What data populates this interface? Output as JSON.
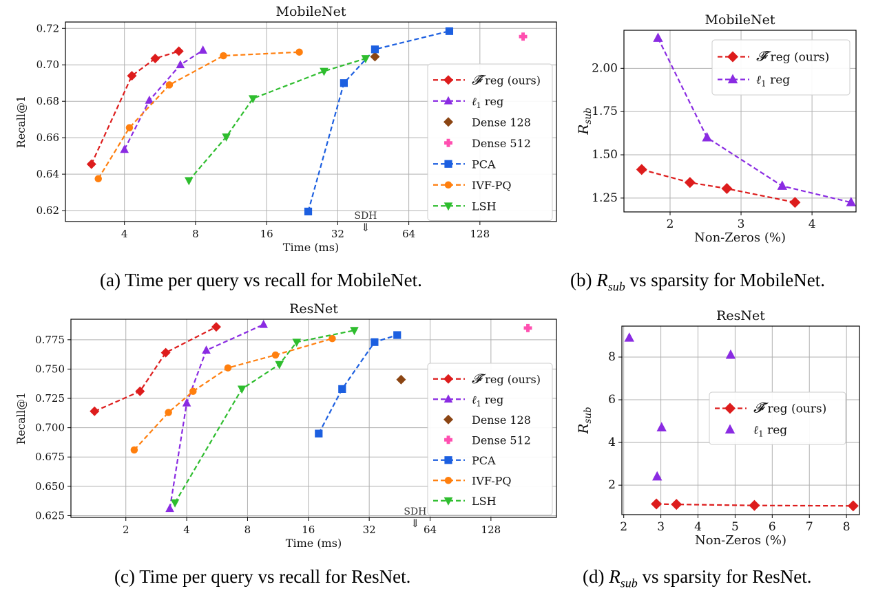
{
  "charts": {
    "a": {
      "title": "MobileNet",
      "xlabel": "Time (ms)",
      "ylabel": "Recall@1",
      "annotation": "SDH",
      "caption": "(a) Time per query vs recall for MobileNet.",
      "legend": [
        "𝓕̃ reg (ours)",
        "ℓ1 reg",
        "Dense 128",
        "Dense 512",
        "PCA",
        "IVF-PQ",
        "LSH"
      ]
    },
    "b": {
      "title": "MobileNet",
      "xlabel": "Non-Zeros (%)",
      "ylabel": "R_sub",
      "caption_pre": "(b) ",
      "caption_var": "R",
      "caption_sub": "sub",
      "caption_post": " vs sparsity for MobileNet.",
      "legend": [
        "𝓕̃ reg (ours)",
        "ℓ1 reg"
      ]
    },
    "c": {
      "title": "ResNet",
      "xlabel": "Time (ms)",
      "ylabel": "Recall@1",
      "annotation": "SDH",
      "caption": "(c) Time per query vs recall for ResNet.",
      "legend": [
        "𝓕̃ reg (ours)",
        "ℓ1 reg",
        "Dense 128",
        "Dense 512",
        "PCA",
        "IVF-PQ",
        "LSH"
      ]
    },
    "d": {
      "title": "ResNet",
      "xlabel": "Non-Zeros (%)",
      "ylabel": "R_sub",
      "caption_pre": "(d) ",
      "caption_var": "R",
      "caption_sub": "sub",
      "caption_post": " vs sparsity for ResNet.",
      "legend": [
        "𝓕̃ reg (ours)",
        "ℓ1 reg"
      ]
    }
  },
  "chart_data": [
    {
      "type": "line",
      "title": "MobileNet",
      "xlabel": "Time (ms)",
      "ylabel": "Recall@1",
      "xscale": "log2",
      "xlim": [
        2.25,
        270
      ],
      "ylim": [
        0.614,
        0.7235
      ],
      "xticks": [
        4,
        8,
        16,
        32,
        64,
        128
      ],
      "yticks": [
        0.62,
        0.64,
        0.66,
        0.68,
        0.7,
        0.72
      ],
      "ytick_labels": [
        "0.62",
        "0.64",
        "0.66",
        "0.68",
        "0.70",
        "0.72"
      ],
      "grid": true,
      "legend_position": "right",
      "series": [
        {
          "name": "𝓕̃ reg (ours)",
          "color": "#dd1c1c",
          "marker": "diamond",
          "dashed": true,
          "x": [
            2.9,
            4.3,
            5.4,
            6.8
          ],
          "y": [
            0.6455,
            0.694,
            0.7035,
            0.7075
          ]
        },
        {
          "name": "ℓ1 reg",
          "color": "#8a2be2",
          "marker": "triangle-up",
          "dashed": true,
          "x": [
            4.0,
            5.1,
            6.9,
            8.6
          ],
          "y": [
            0.6535,
            0.6805,
            0.7,
            0.708
          ]
        },
        {
          "name": "Dense 128",
          "color": "#8b4513",
          "marker": "diamond",
          "dashed": false,
          "x": [
            46
          ],
          "y": [
            0.7045
          ]
        },
        {
          "name": "Dense 512",
          "color": "#ff4fb0",
          "marker": "plus",
          "dashed": false,
          "x": [
            195
          ],
          "y": [
            0.7155
          ]
        },
        {
          "name": "PCA",
          "color": "#1c5fe0",
          "marker": "square",
          "dashed": true,
          "x": [
            24,
            34,
            46,
            95
          ],
          "y": [
            0.6195,
            0.69,
            0.7085,
            0.7185
          ]
        },
        {
          "name": "IVF-PQ",
          "color": "#ff7f0e",
          "marker": "circle",
          "dashed": true,
          "x": [
            3.1,
            4.2,
            6.2,
            10.5,
            22
          ],
          "y": [
            0.6375,
            0.6655,
            0.689,
            0.705,
            0.707
          ]
        },
        {
          "name": "LSH",
          "color": "#2ebd2e",
          "marker": "triangle-down",
          "dashed": true,
          "x": [
            7.5,
            10.8,
            14,
            28,
            42
          ],
          "y": [
            0.6365,
            0.6605,
            0.6815,
            0.6965,
            0.7035
          ]
        }
      ],
      "annotations": [
        {
          "text": "SDH",
          "x": 42
        }
      ]
    },
    {
      "type": "line",
      "title": "MobileNet",
      "xlabel": "Non-Zeros (%)",
      "ylabel": "R_sub",
      "xlim": [
        1.35,
        4.62
      ],
      "ylim": [
        1.17,
        2.22
      ],
      "xticks": [
        2,
        3,
        4
      ],
      "yticks": [
        1.25,
        1.5,
        1.75,
        2.0
      ],
      "ytick_labels": [
        "1.25",
        "1.50",
        "1.75",
        "2.00"
      ],
      "grid": true,
      "legend_position": "top-right",
      "series": [
        {
          "name": "𝓕̃ reg (ours)",
          "color": "#dd1c1c",
          "marker": "diamond",
          "dashed": true,
          "x": [
            1.6,
            2.28,
            2.8,
            3.76
          ],
          "y": [
            1.415,
            1.34,
            1.305,
            1.225
          ]
        },
        {
          "name": "ℓ1 reg",
          "color": "#8a2be2",
          "marker": "triangle-up",
          "dashed": true,
          "x": [
            1.83,
            2.52,
            3.58,
            4.55
          ],
          "y": [
            2.175,
            1.6,
            1.32,
            1.225
          ]
        }
      ]
    },
    {
      "type": "line",
      "title": "ResNet",
      "xlabel": "Time (ms)",
      "ylabel": "Recall@1",
      "xscale": "log2",
      "xlim": [
        1.07,
        270
      ],
      "ylim": [
        0.6235,
        0.7925
      ],
      "xticks": [
        2,
        4,
        8,
        16,
        32,
        64,
        128
      ],
      "yticks": [
        0.625,
        0.65,
        0.675,
        0.7,
        0.725,
        0.75,
        0.775
      ],
      "ytick_labels": [
        "0.625",
        "0.650",
        "0.675",
        "0.700",
        "0.725",
        "0.750",
        "0.775"
      ],
      "grid": true,
      "legend_position": "right",
      "series": [
        {
          "name": "𝓕̃ reg (ours)",
          "color": "#dd1c1c",
          "marker": "diamond",
          "dashed": true,
          "x": [
            1.4,
            2.35,
            3.15,
            5.6
          ],
          "y": [
            0.714,
            0.731,
            0.764,
            0.786
          ]
        },
        {
          "name": "ℓ1 reg",
          "color": "#8a2be2",
          "marker": "triangle-up",
          "dashed": true,
          "x": [
            3.3,
            4.0,
            5.0,
            9.6
          ],
          "y": [
            0.631,
            0.721,
            0.766,
            0.788
          ]
        },
        {
          "name": "Dense 128",
          "color": "#8b4513",
          "marker": "diamond",
          "dashed": false,
          "x": [
            46
          ],
          "y": [
            0.741
          ]
        },
        {
          "name": "Dense 512",
          "color": "#ff4fb0",
          "marker": "plus",
          "dashed": false,
          "x": [
            195
          ],
          "y": [
            0.785
          ]
        },
        {
          "name": "PCA",
          "color": "#1c5fe0",
          "marker": "square",
          "dashed": true,
          "x": [
            18,
            23.5,
            34,
            44
          ],
          "y": [
            0.695,
            0.733,
            0.773,
            0.779
          ]
        },
        {
          "name": "IVF-PQ",
          "color": "#ff7f0e",
          "marker": "circle",
          "dashed": true,
          "x": [
            2.2,
            3.25,
            4.3,
            6.4,
            11,
            21
          ],
          "y": [
            0.681,
            0.713,
            0.731,
            0.751,
            0.762,
            0.776
          ]
        },
        {
          "name": "LSH",
          "color": "#2ebd2e",
          "marker": "triangle-down",
          "dashed": true,
          "x": [
            3.5,
            7.5,
            11.5,
            14,
            27
          ],
          "y": [
            0.636,
            0.733,
            0.754,
            0.773,
            0.783
          ]
        }
      ],
      "annotations": [
        {
          "text": "SDH",
          "x": 54
        }
      ]
    },
    {
      "type": "line",
      "title": "ResNet",
      "xlabel": "Non-Zeros (%)",
      "ylabel": "R_sub",
      "xlim": [
        1.95,
        8.35
      ],
      "ylim": [
        0.62,
        9.45
      ],
      "xticks": [
        2,
        3,
        4,
        5,
        6,
        7,
        8
      ],
      "yticks": [
        2,
        4,
        6,
        8
      ],
      "ytick_labels": [
        "2",
        "4",
        "6",
        "8"
      ],
      "grid": true,
      "legend_position": "center-right",
      "series": [
        {
          "name": "𝓕̃ reg (ours)",
          "color": "#dd1c1c",
          "marker": "diamond",
          "dashed": true,
          "x": [
            2.88,
            3.42,
            5.52,
            8.18
          ],
          "y": [
            1.12,
            1.1,
            1.05,
            1.03
          ]
        },
        {
          "name": "ℓ1 reg",
          "color": "#8a2be2",
          "marker": "triangle-up",
          "dashed": false,
          "x": [
            2.15,
            2.9,
            3.02,
            4.88
          ],
          "y": [
            8.9,
            2.4,
            4.7,
            8.1
          ]
        }
      ]
    }
  ]
}
